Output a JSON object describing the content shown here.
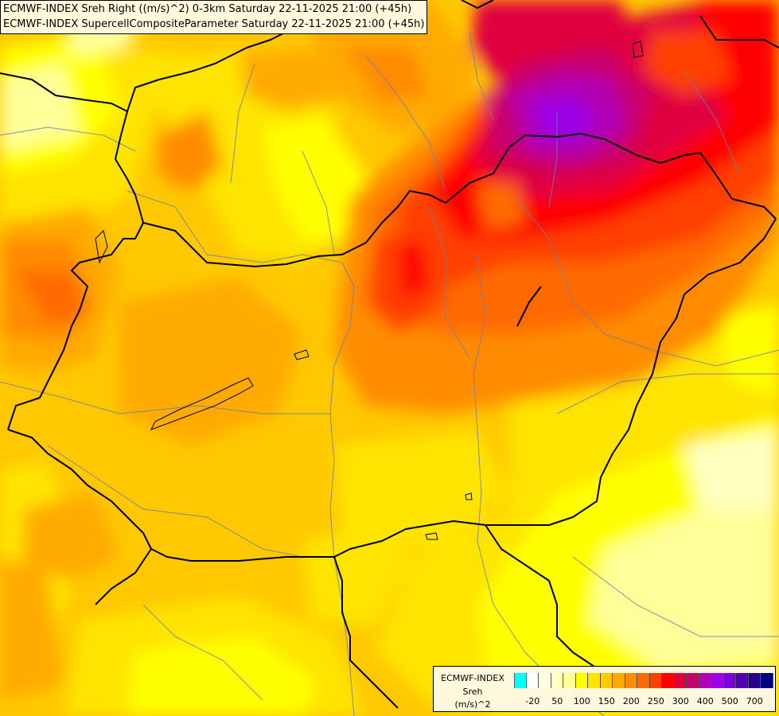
{
  "title_lines": [
    "ECMWF-INDEX Sreh Right ((m/s)^2) 0-3km Saturday 22-11-2025 21:00 (+45h)",
    "ECMWF-INDEX SupercellCompositeParameter Saturday 22-11-2025 21:00 (+45h)"
  ],
  "legend": {
    "source": "ECMWF-INDEX",
    "parameter": "Sreh",
    "unit": "(m/s)^2",
    "colors": [
      "#00ffff",
      "#ffffff",
      "#ffffe0",
      "#ffffc0",
      "#ffff9a",
      "#ffff00",
      "#ffe400",
      "#ffc800",
      "#ffaa00",
      "#ff8c00",
      "#ff6a00",
      "#ff4000",
      "#ff0000",
      "#e00040",
      "#c8006e",
      "#b400b4",
      "#9b00e6",
      "#7800dc",
      "#5000b4",
      "#28008c",
      "#000080"
    ],
    "ticks": [
      {
        "label": "-20",
        "index": 1
      },
      {
        "label": "50",
        "index": 3
      },
      {
        "label": "100",
        "index": 5
      },
      {
        "label": "150",
        "index": 7
      },
      {
        "label": "200",
        "index": 9
      },
      {
        "label": "250",
        "index": 11
      },
      {
        "label": "300",
        "index": 13
      },
      {
        "label": "400",
        "index": 15
      },
      {
        "label": "500",
        "index": 17
      },
      {
        "label": "700",
        "index": 19
      }
    ]
  }
}
